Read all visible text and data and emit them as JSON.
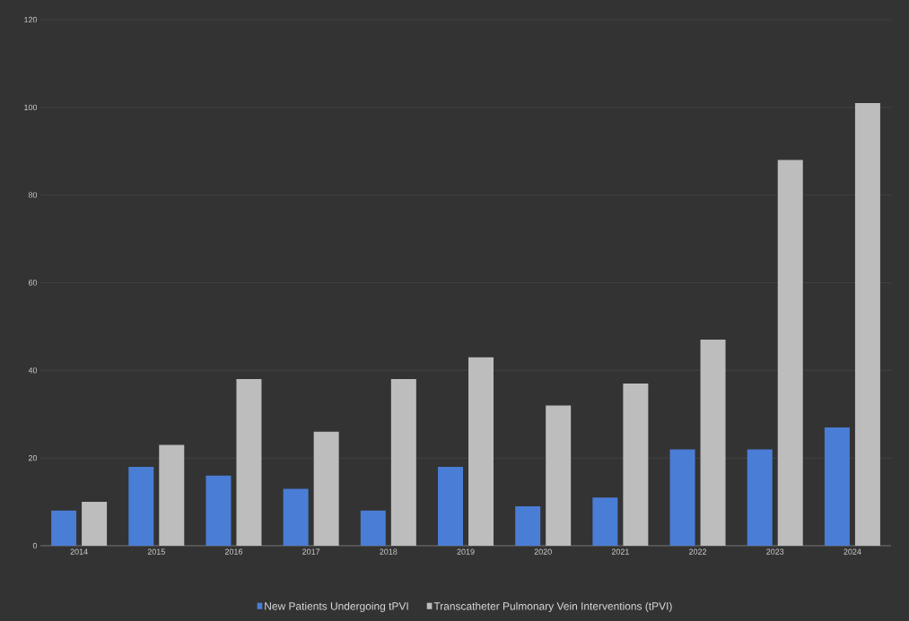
{
  "chart_data": {
    "type": "bar",
    "categories": [
      "2014",
      "2015",
      "2016",
      "2017",
      "2018",
      "2019",
      "2020",
      "2021",
      "2022",
      "2023",
      "2024"
    ],
    "series": [
      {
        "name": "New Patients Undergoing tPVI",
        "color": "#4a7dd6",
        "values": [
          8,
          18,
          16,
          13,
          8,
          18,
          9,
          11,
          22,
          22,
          27
        ]
      },
      {
        "name": "Transcatheter Pulmonary Vein Interventions (tPVI)",
        "color": "#bdbdbd",
        "values": [
          10,
          23,
          38,
          26,
          38,
          43,
          32,
          37,
          47,
          88,
          101
        ]
      }
    ],
    "ylim": [
      0,
      120
    ],
    "yticks": [
      0,
      20,
      40,
      60,
      80,
      100,
      120
    ],
    "grid": "y",
    "legend": "bottom"
  }
}
